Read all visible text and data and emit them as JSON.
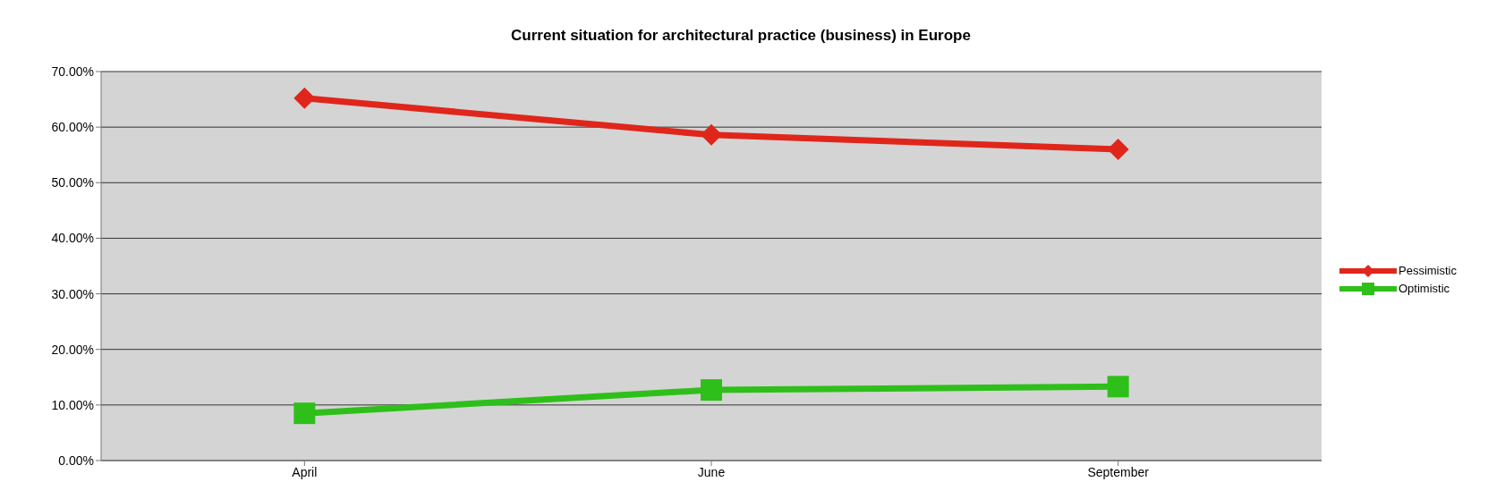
{
  "chart_data": {
    "type": "line",
    "title": "Current situation for architectural practice (business) in Europe",
    "categories": [
      "April",
      "June",
      "September"
    ],
    "series": [
      {
        "name": "Pessimistic",
        "color": "#e0261b",
        "marker": "diamond",
        "values": [
          65.2,
          58.6,
          56.0
        ]
      },
      {
        "name": "Optimistic",
        "color": "#2fbf1a",
        "marker": "square",
        "values": [
          8.5,
          12.7,
          13.3
        ]
      }
    ],
    "ylim": [
      0,
      70
    ],
    "yticks": [
      {
        "value": 0,
        "label": "0.00%"
      },
      {
        "value": 10,
        "label": "10.00%"
      },
      {
        "value": 20,
        "label": "20.00%"
      },
      {
        "value": 30,
        "label": "30.00%"
      },
      {
        "value": 40,
        "label": "40.00%"
      },
      {
        "value": 50,
        "label": "50.00%"
      },
      {
        "value": 60,
        "label": "60.00%"
      },
      {
        "value": 70,
        "label": "70.00%"
      }
    ],
    "grid": "y",
    "legend": "right",
    "line_style": "solid"
  }
}
